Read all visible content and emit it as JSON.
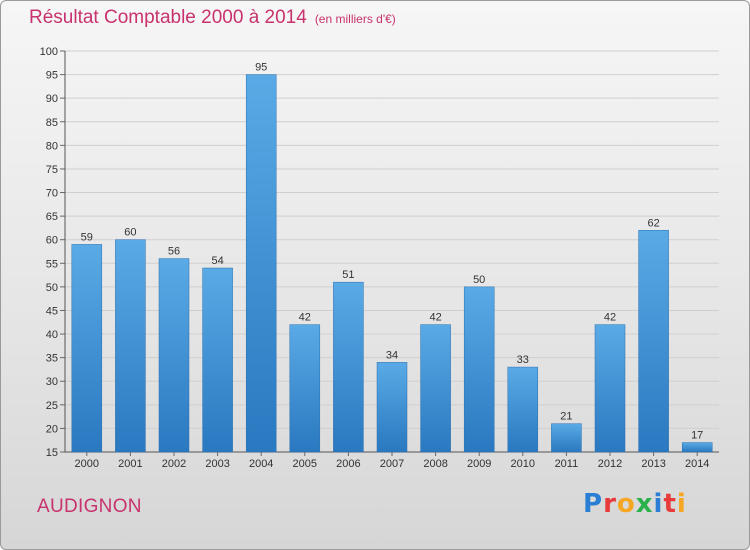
{
  "header": {
    "title": "Résultat Comptable 2000 à 2014",
    "subtitle": "(en milliers d'€)"
  },
  "footer": {
    "commune": "AUDIGNON",
    "logo_text": "Proxiti",
    "logo_colors": [
      "#2a7fd4",
      "#e83a3a",
      "#f5a623",
      "#2ab24a",
      "#2a7fd4",
      "#e83a3a",
      "#f5a623"
    ]
  },
  "chart_data": {
    "type": "bar",
    "categories": [
      "2000",
      "2001",
      "2002",
      "2003",
      "2004",
      "2005",
      "2006",
      "2007",
      "2008",
      "2009",
      "2010",
      "2011",
      "2012",
      "2013",
      "2014"
    ],
    "values": [
      59,
      60,
      56,
      54,
      95,
      42,
      51,
      34,
      42,
      50,
      33,
      21,
      42,
      62,
      17
    ],
    "ylim": [
      15,
      100
    ],
    "yticks": [
      15,
      20,
      25,
      30,
      35,
      40,
      45,
      50,
      55,
      60,
      65,
      70,
      75,
      80,
      85,
      90,
      95,
      100
    ],
    "grid": true,
    "bar_color": "#3f93d6"
  }
}
